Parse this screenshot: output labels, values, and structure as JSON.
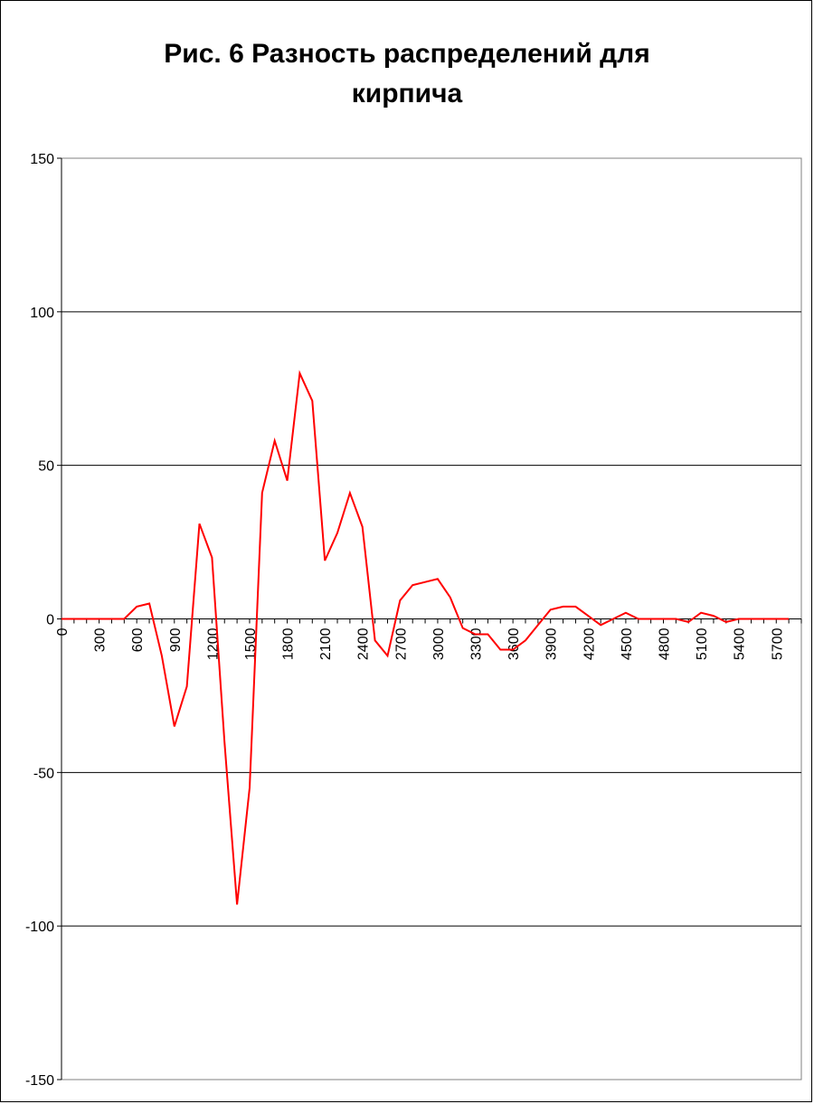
{
  "chart_data": {
    "type": "line",
    "title": "Рис. 6 Разность распределений для кирпича",
    "title_lines": [
      "Рис. 6 Разность распределений для",
      "кирпича"
    ],
    "xlabel": "",
    "ylabel": "",
    "ylim": [
      -150,
      150
    ],
    "y_ticks": [
      150,
      100,
      50,
      0,
      -50,
      -100,
      -150
    ],
    "x_tick_labels": [
      "0",
      "300",
      "600",
      "900",
      "1200",
      "1500",
      "1800",
      "2100",
      "2400",
      "2700",
      "3000",
      "3300",
      "3600",
      "3900",
      "4200",
      "4500",
      "4800",
      "5100",
      "5400",
      "5700"
    ],
    "grid": "horizontal",
    "line_color": "#ff0000",
    "series": [
      {
        "x": [
          0,
          100,
          200,
          300,
          400,
          500,
          600,
          700,
          800,
          900,
          1000,
          1100,
          1200,
          1300,
          1400,
          1500,
          1600,
          1700,
          1800,
          1900,
          2000,
          2100,
          2200,
          2300,
          2400,
          2500,
          2600,
          2700,
          2800,
          2900,
          3000,
          3100,
          3200,
          3300,
          3400,
          3500,
          3600,
          3700,
          3800,
          3900,
          4000,
          4100,
          4200,
          4300,
          4400,
          4500,
          4600,
          4700,
          4800,
          4900,
          5000,
          5100,
          5200,
          5300,
          5400,
          5500,
          5600,
          5700,
          5800
        ],
        "values": [
          0,
          0,
          0,
          0,
          0,
          0,
          4,
          5,
          -12,
          -35,
          -22,
          31,
          20,
          -40,
          -93,
          -55,
          41,
          58,
          45,
          80,
          71,
          19,
          28,
          41,
          30,
          -7,
          -12,
          6,
          11,
          12,
          13,
          7,
          -3,
          -5,
          -5,
          -10,
          -10,
          -7,
          -2,
          3,
          4,
          4,
          1,
          -2,
          0,
          2,
          0,
          0,
          0,
          0,
          -1,
          2,
          1,
          -1,
          0,
          0,
          0,
          0,
          0
        ]
      }
    ]
  }
}
